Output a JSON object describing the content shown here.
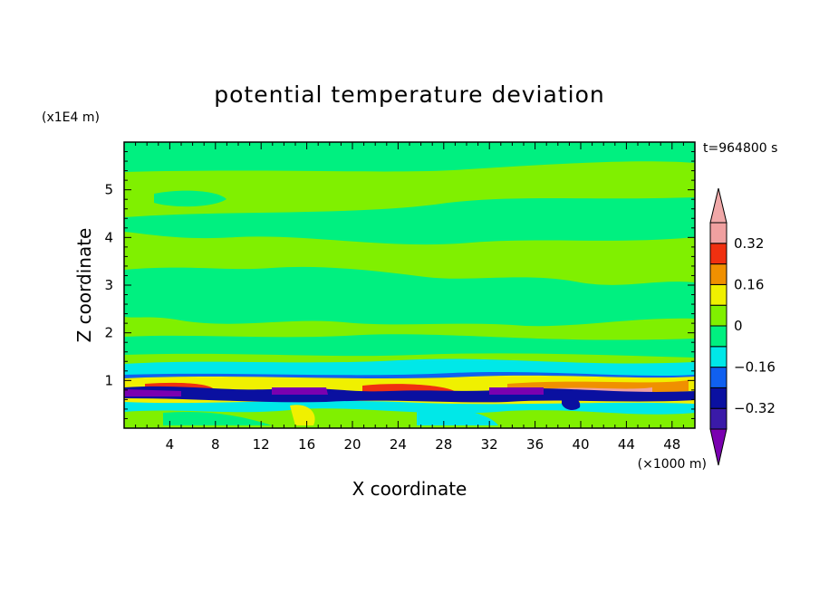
{
  "chart_data": {
    "type": "heatmap",
    "title": "potential temperature deviation",
    "xlabel": "X coordinate",
    "ylabel": "Z coordinate",
    "x_unit": "(×1000 m)",
    "y_unit": "(x1E4 m)",
    "time_label": "t=964800 s",
    "xlim": [
      0,
      50
    ],
    "ylim": [
      0,
      6
    ],
    "x_ticks": [
      4,
      8,
      12,
      16,
      20,
      24,
      28,
      32,
      36,
      40,
      44,
      48
    ],
    "y_ticks": [
      1,
      2,
      3,
      4,
      5
    ],
    "colorbar": {
      "levels": [
        -0.4,
        -0.32,
        -0.24,
        -0.16,
        -0.08,
        0,
        0.08,
        0.16,
        0.24,
        0.32,
        0.4
      ],
      "labels": [
        "0.32",
        "0.16",
        "0",
        "−0.16",
        "−0.32"
      ],
      "label_values": [
        0.32,
        0.16,
        0,
        -0.16,
        -0.32
      ],
      "colors": [
        "#7a00b0",
        "#3a1aa8",
        "#0a10a0",
        "#1060f0",
        "#00e8e8",
        "#00f080",
        "#80f000",
        "#f0f000",
        "#f09000",
        "#f03010",
        "#f0a0a0",
        "#f0a8a8"
      ],
      "extend": "both"
    },
    "regions": [
      {
        "value": 0.04,
        "desc": "upper layer background, slightly positive"
      },
      {
        "value": -0.04,
        "desc": "interleaved slightly negative bands"
      },
      {
        "value": -0.12,
        "desc": "near-surface cyan band around z≈0.7–1.2"
      },
      {
        "value": -0.36,
        "desc": "strong negative streaks around z≈0.75"
      },
      {
        "value": 0.3,
        "desc": "strong positive streaks around z≈0.85"
      }
    ]
  }
}
